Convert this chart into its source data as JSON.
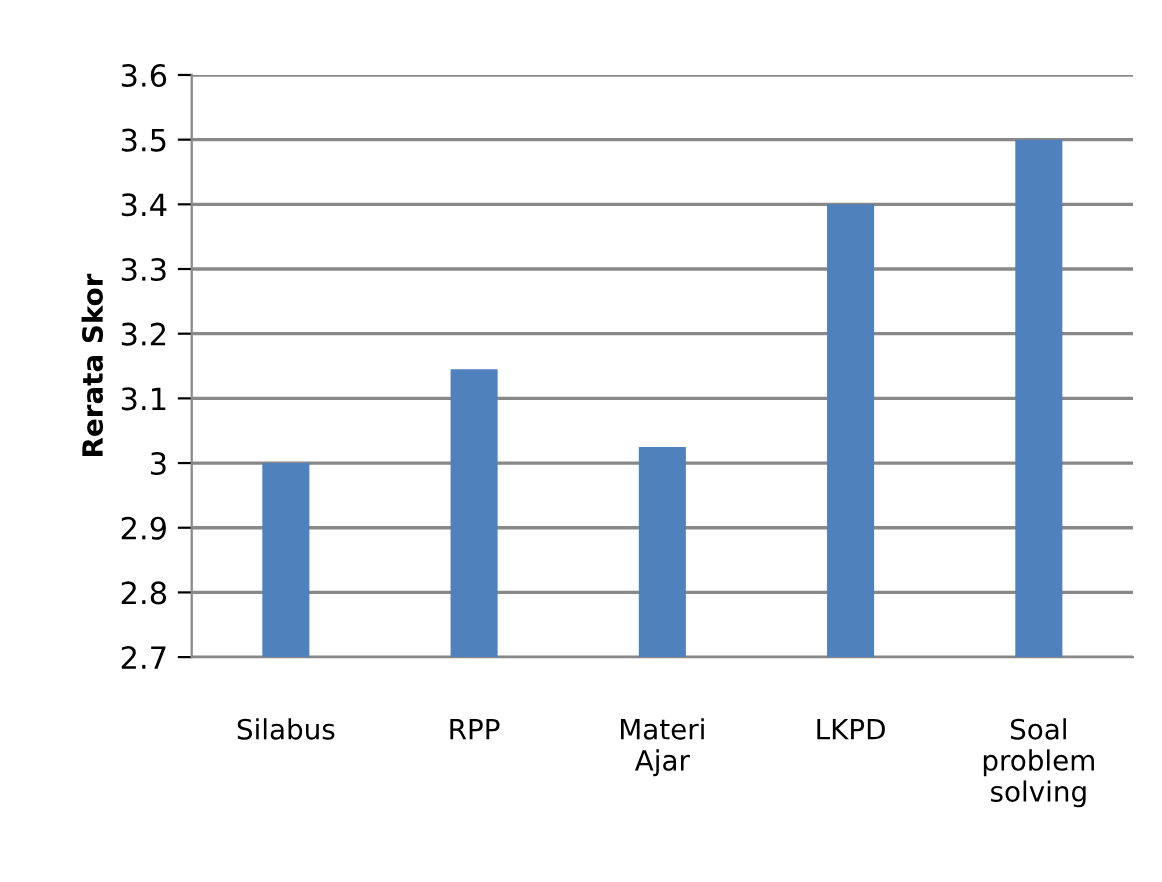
{
  "chart_data": {
    "type": "bar",
    "ylabel": "Rerata Skor",
    "categories": [
      "Silabus",
      "RPP",
      "Materi\nAjar",
      "LKPD",
      "Soal\nproblem\nsolving"
    ],
    "values": [
      3.0,
      3.145,
      3.025,
      3.4,
      3.5
    ],
    "color": "#4f81bd",
    "ylim": [
      2.7,
      3.6
    ],
    "yticks": [
      {
        "value": 2.7,
        "label": "2.7"
      },
      {
        "value": 2.8,
        "label": "2.8"
      },
      {
        "value": 2.9,
        "label": "2.9"
      },
      3,
      {
        "value": 3.1,
        "label": "3.1"
      },
      {
        "value": 3.2,
        "label": "3.2"
      },
      {
        "value": 3.3,
        "label": "3.3"
      },
      {
        "value": 3.4,
        "label": "3.4"
      },
      {
        "value": 3.5,
        "label": "3.5"
      },
      {
        "value": 3.6,
        "label": "3.6"
      }
    ],
    "grid": "y"
  }
}
